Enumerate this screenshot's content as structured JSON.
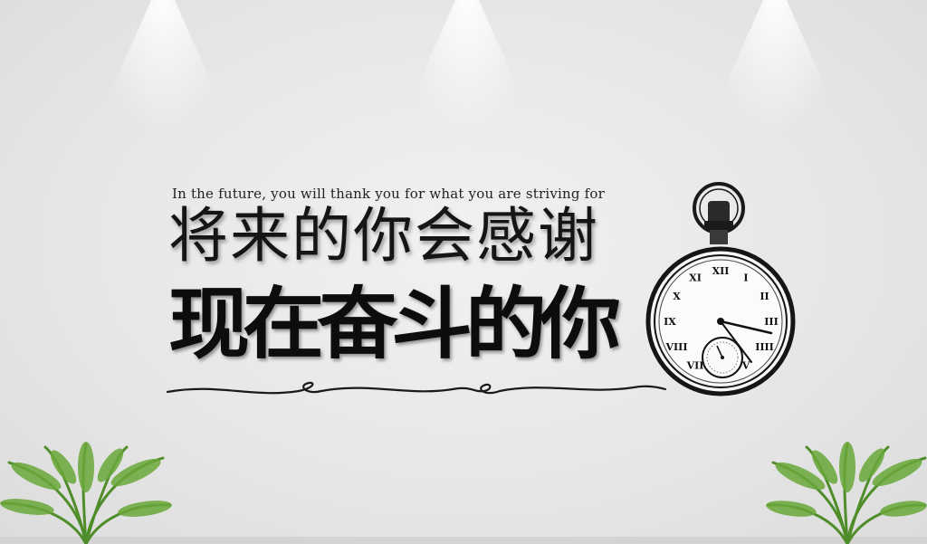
{
  "tagline_en": "In the future, you will thank you for what you are striving for",
  "heading_line1": "将来的你会感谢",
  "heading_line2": "现在奋斗的你",
  "watch_numerals": [
    "XII",
    "I",
    "II",
    "III",
    "IIII",
    "V",
    "VI",
    "VII",
    "VIII",
    "IX",
    "X",
    "XI"
  ],
  "colors": {
    "wall": "#e8e8e8",
    "text": "#111111",
    "plant": "#4f8d2b"
  }
}
